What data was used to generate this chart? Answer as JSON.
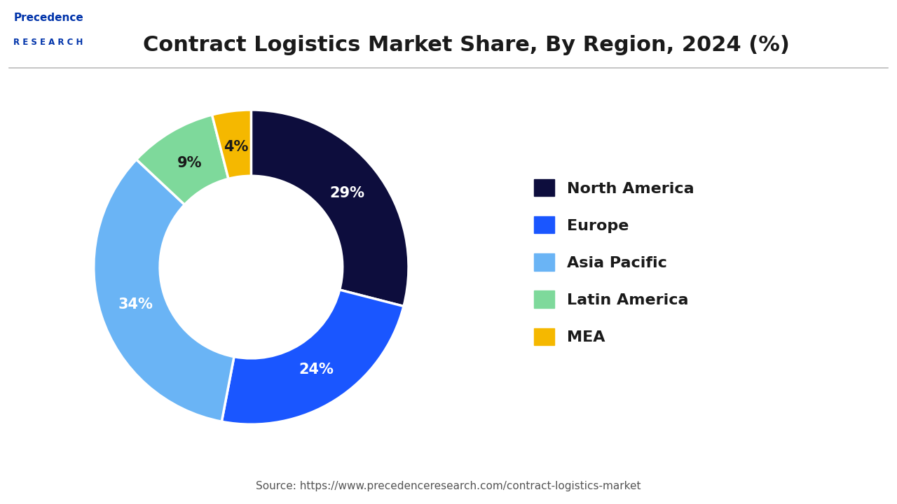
{
  "title": "Contract Logistics Market Share, By Region, 2024 (%)",
  "title_fontsize": 22,
  "title_color": "#1a1a1a",
  "labels": [
    "North America",
    "Europe",
    "Asia Pacific",
    "Latin America",
    "MEA"
  ],
  "values": [
    29,
    24,
    34,
    9,
    4
  ],
  "colors": [
    "#0d0d3d",
    "#1a56ff",
    "#6ab4f5",
    "#7ed99b",
    "#f5b800"
  ],
  "pct_labels": [
    "29%",
    "24%",
    "34%",
    "9%",
    "4%"
  ],
  "pct_colors": [
    "white",
    "white",
    "white",
    "#1a1a1a",
    "#1a1a1a"
  ],
  "source_text": "Source: https://www.precedenceresearch.com/contract-logistics-market",
  "source_fontsize": 11,
  "source_color": "#555555",
  "background_color": "#ffffff",
  "legend_fontsize": 16
}
